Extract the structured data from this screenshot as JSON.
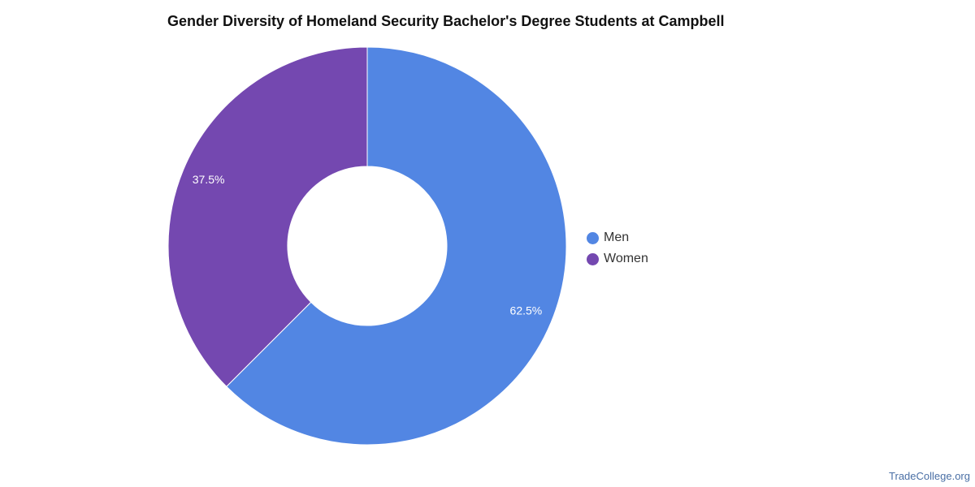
{
  "chart_data": {
    "type": "pie",
    "title": "Gender Diversity of Homeland Security Bachelor's Degree Students at Campbell",
    "categories": [
      "Men",
      "Women"
    ],
    "values": [
      62.5,
      37.5
    ],
    "labels": [
      "62.5%",
      "37.5%"
    ],
    "colors": [
      "#5286e3",
      "#7448b0"
    ],
    "donut": true,
    "legend_position": "right"
  },
  "legend": [
    {
      "label": "Men",
      "color": "#5286e3"
    },
    {
      "label": "Women",
      "color": "#7448b0"
    }
  ],
  "watermark": "TradeCollege.org"
}
